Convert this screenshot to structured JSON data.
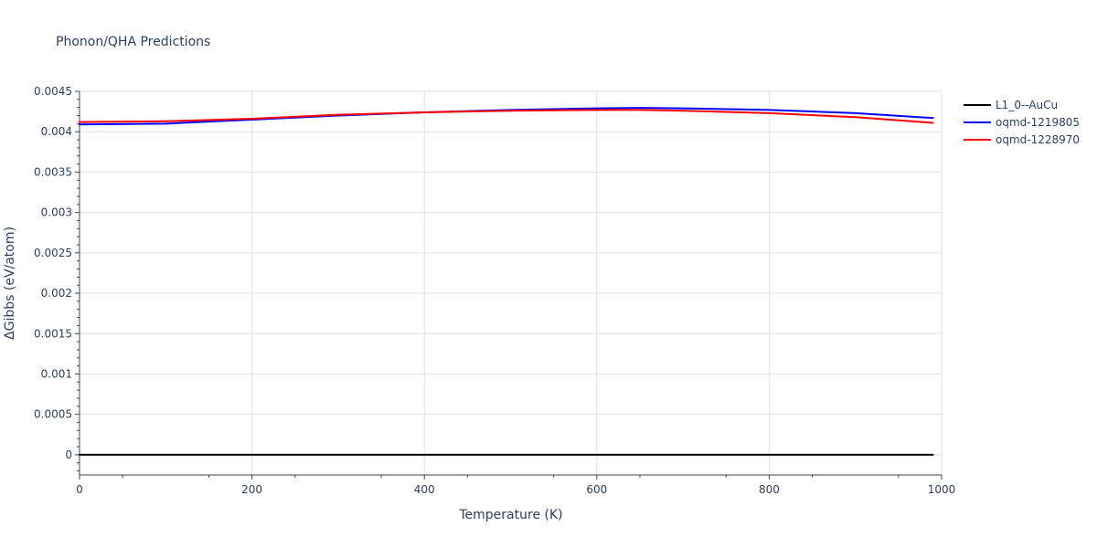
{
  "chart_data": {
    "type": "line",
    "title": "Phonon/QHA Predictions",
    "xlabel": "Temperature (K)",
    "ylabel": "ΔGibbs (eV/atom)",
    "xlim": [
      0,
      1000
    ],
    "ylim": [
      -0.00025,
      0.0045
    ],
    "xticks": [
      0,
      200,
      400,
      600,
      800,
      1000
    ],
    "xtick_labels": [
      "0",
      "200",
      "400",
      "600",
      "800",
      "1000"
    ],
    "yticks": [
      0,
      0.0005,
      0.001,
      0.0015,
      0.002,
      0.0025,
      0.003,
      0.0035,
      0.004,
      0.0045
    ],
    "ytick_labels": [
      "0",
      "0.0005",
      "0.001",
      "0.0015",
      "0.002",
      "0.0025",
      "0.003",
      "0.0035",
      "0.004",
      "0.0045"
    ],
    "grid": true,
    "legend_position": "right",
    "series": [
      {
        "name": "L1_0--AuCu",
        "color": "#000000",
        "x": [
          0,
          990
        ],
        "y": [
          0,
          0
        ]
      },
      {
        "name": "oqmd-1219805",
        "color": "#0000ff",
        "x": [
          0,
          100,
          200,
          300,
          400,
          500,
          600,
          650,
          700,
          800,
          900,
          990
        ],
        "y": [
          0.00409,
          0.0041,
          0.00415,
          0.0042,
          0.00424,
          0.00427,
          0.00429,
          0.004295,
          0.00429,
          0.00427,
          0.00423,
          0.00417
        ]
      },
      {
        "name": "oqmd-1228970",
        "color": "#ff0000",
        "x": [
          0,
          100,
          200,
          300,
          400,
          500,
          600,
          650,
          700,
          800,
          900,
          990
        ],
        "y": [
          0.00412,
          0.00413,
          0.00416,
          0.00421,
          0.00424,
          0.00426,
          0.00427,
          0.00427,
          0.00426,
          0.00423,
          0.00418,
          0.00411
        ]
      }
    ]
  }
}
